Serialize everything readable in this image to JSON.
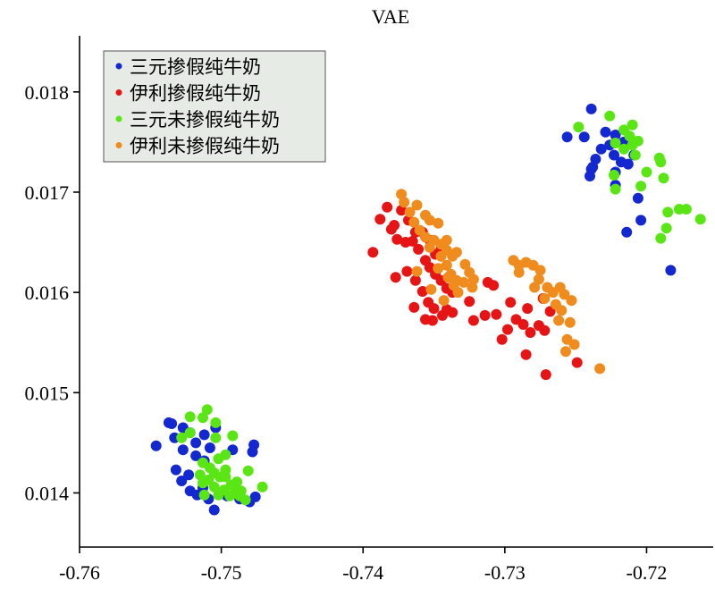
{
  "chart_data": {
    "type": "scatter",
    "title": "VAE",
    "xlabel": "",
    "ylabel": "",
    "xlim": [
      -0.76,
      -0.7153
    ],
    "ylim": [
      0.01346,
      0.01856
    ],
    "xticks": [
      -0.76,
      -0.75,
      -0.74,
      -0.73,
      -0.72
    ],
    "xtick_labels": [
      "-0.76",
      "-0.75",
      "-0.74",
      "-0.73",
      "-0.72"
    ],
    "yticks": [
      0.014,
      0.015,
      0.016,
      0.017,
      0.018
    ],
    "ytick_labels": [
      "0.014",
      "0.015",
      "0.016",
      "0.017",
      "0.018"
    ],
    "grid": false,
    "legend_position": "top-left",
    "series": [
      {
        "name": "三元掺假纯牛奶",
        "color": "#1428d2",
        "points": [
          [
            -0.7546,
            0.01447
          ],
          [
            -0.7537,
            0.0147
          ],
          [
            -0.7533,
            0.01455
          ],
          [
            -0.7527,
            0.01465
          ],
          [
            -0.7522,
            0.0146
          ],
          [
            -0.7518,
            0.0145
          ],
          [
            -0.7512,
            0.01458
          ],
          [
            -0.7508,
            0.01445
          ],
          [
            -0.7504,
            0.01465
          ],
          [
            -0.7527,
            0.01443
          ],
          [
            -0.7518,
            0.01437
          ],
          [
            -0.7512,
            0.01432
          ],
          [
            -0.7492,
            0.01443
          ],
          [
            -0.7477,
            0.01448
          ],
          [
            -0.7478,
            0.01441
          ],
          [
            -0.7532,
            0.01423
          ],
          [
            -0.7528,
            0.01412
          ],
          [
            -0.7523,
            0.01418
          ],
          [
            -0.7522,
            0.01402
          ],
          [
            -0.7517,
            0.01398
          ],
          [
            -0.7513,
            0.01405
          ],
          [
            -0.7509,
            0.01394
          ],
          [
            -0.7505,
            0.01383
          ],
          [
            -0.7496,
            0.01397
          ],
          [
            -0.7487,
            0.01394
          ],
          [
            -0.748,
            0.01391
          ],
          [
            -0.7476,
            0.01396
          ],
          [
            -0.7535,
            0.01469
          ],
          [
            -0.7239,
            0.01783
          ],
          [
            -0.7256,
            0.01755
          ],
          [
            -0.7244,
            0.01755
          ],
          [
            -0.7229,
            0.0176
          ],
          [
            -0.7222,
            0.01757
          ],
          [
            -0.7216,
            0.0175
          ],
          [
            -0.7232,
            0.01743
          ],
          [
            -0.7226,
            0.01747
          ],
          [
            -0.7223,
            0.01737
          ],
          [
            -0.7236,
            0.01733
          ],
          [
            -0.7238,
            0.01725
          ],
          [
            -0.724,
            0.01716
          ],
          [
            -0.7239,
            0.01723
          ],
          [
            -0.7222,
            0.0172
          ],
          [
            -0.7218,
            0.0173
          ],
          [
            -0.7213,
            0.01728
          ],
          [
            -0.7209,
            0.01737
          ],
          [
            -0.7222,
            0.01707
          ],
          [
            -0.7206,
            0.01694
          ],
          [
            -0.7204,
            0.01672
          ],
          [
            -0.7214,
            0.0166
          ],
          [
            -0.7183,
            0.01622
          ]
        ]
      },
      {
        "name": "伊利掺假纯牛奶",
        "color": "#e61414",
        "points": [
          [
            -0.7393,
            0.0164
          ],
          [
            -0.738,
            0.01663
          ],
          [
            -0.7388,
            0.01673
          ],
          [
            -0.7383,
            0.01685
          ],
          [
            -0.7378,
            0.01667
          ],
          [
            -0.7373,
            0.01682
          ],
          [
            -0.7368,
            0.01672
          ],
          [
            -0.7363,
            0.0166
          ],
          [
            -0.7358,
            0.0166
          ],
          [
            -0.7376,
            0.01653
          ],
          [
            -0.737,
            0.0165
          ],
          [
            -0.7365,
            0.01651
          ],
          [
            -0.7353,
            0.01652
          ],
          [
            -0.7349,
            0.01638
          ],
          [
            -0.7345,
            0.01644
          ],
          [
            -0.7361,
            0.01643
          ],
          [
            -0.7356,
            0.01632
          ],
          [
            -0.7353,
            0.01625
          ],
          [
            -0.7349,
            0.01618
          ],
          [
            -0.7345,
            0.01612
          ],
          [
            -0.7341,
            0.01604
          ],
          [
            -0.7337,
            0.016
          ],
          [
            -0.7377,
            0.01615
          ],
          [
            -0.7369,
            0.01621
          ],
          [
            -0.7363,
            0.01612
          ],
          [
            -0.7358,
            0.01601
          ],
          [
            -0.7354,
            0.0159
          ],
          [
            -0.735,
            0.01584
          ],
          [
            -0.7344,
            0.01577
          ],
          [
            -0.7341,
            0.01583
          ],
          [
            -0.7364,
            0.01585
          ],
          [
            -0.7356,
            0.01573
          ],
          [
            -0.7351,
            0.01572
          ],
          [
            -0.7337,
            0.0158
          ],
          [
            -0.7325,
            0.01591
          ],
          [
            -0.7322,
            0.01572
          ],
          [
            -0.7312,
            0.0161
          ],
          [
            -0.7308,
            0.01607
          ],
          [
            -0.7314,
            0.01577
          ],
          [
            -0.7306,
            0.01578
          ],
          [
            -0.7296,
            0.0159
          ],
          [
            -0.7284,
            0.01584
          ],
          [
            -0.7292,
            0.01573
          ],
          [
            -0.7298,
            0.01563
          ],
          [
            -0.7287,
            0.01568
          ],
          [
            -0.7302,
            0.01553
          ],
          [
            -0.7282,
            0.0156
          ],
          [
            -0.7276,
            0.01567
          ],
          [
            -0.7272,
            0.01562
          ],
          [
            -0.7268,
            0.01581
          ],
          [
            -0.7285,
            0.01538
          ],
          [
            -0.7271,
            0.01518
          ],
          [
            -0.7249,
            0.0153
          ],
          [
            -0.7273,
            0.01594
          ]
        ]
      },
      {
        "name": "三元未掺假纯牛奶",
        "color": "#5ae614",
        "points": [
          [
            -0.751,
            0.01483
          ],
          [
            -0.7513,
            0.01475
          ],
          [
            -0.7522,
            0.01476
          ],
          [
            -0.7504,
            0.0147
          ],
          [
            -0.7522,
            0.0146
          ],
          [
            -0.7528,
            0.01455
          ],
          [
            -0.7492,
            0.01457
          ],
          [
            -0.7504,
            0.01455
          ],
          [
            -0.7513,
            0.0143
          ],
          [
            -0.7502,
            0.01434
          ],
          [
            -0.7497,
            0.01438
          ],
          [
            -0.7508,
            0.01425
          ],
          [
            -0.7515,
            0.01418
          ],
          [
            -0.7497,
            0.01423
          ],
          [
            -0.7505,
            0.0142
          ],
          [
            -0.7509,
            0.01413
          ],
          [
            -0.7513,
            0.0141
          ],
          [
            -0.7501,
            0.01416
          ],
          [
            -0.7505,
            0.01406
          ],
          [
            -0.7493,
            0.01408
          ],
          [
            -0.7489,
            0.01411
          ],
          [
            -0.7481,
            0.01422
          ],
          [
            -0.7486,
            0.01402
          ],
          [
            -0.7498,
            0.01403
          ],
          [
            -0.7502,
            0.01398
          ],
          [
            -0.7494,
            0.01397
          ],
          [
            -0.7487,
            0.01397
          ],
          [
            -0.7483,
            0.01393
          ],
          [
            -0.7471,
            0.01406
          ],
          [
            -0.7512,
            0.01398
          ],
          [
            -0.7497,
            0.01416
          ],
          [
            -0.749,
            0.01404
          ],
          [
            -0.7248,
            0.01765
          ],
          [
            -0.7226,
            0.01776
          ],
          [
            -0.721,
            0.01767
          ],
          [
            -0.7216,
            0.01762
          ],
          [
            -0.7212,
            0.01756
          ],
          [
            -0.7222,
            0.01749
          ],
          [
            -0.7206,
            0.01751
          ],
          [
            -0.7216,
            0.01743
          ],
          [
            -0.721,
            0.01747
          ],
          [
            -0.7208,
            0.01737
          ],
          [
            -0.7191,
            0.01734
          ],
          [
            -0.719,
            0.0173
          ],
          [
            -0.72,
            0.0172
          ],
          [
            -0.7223,
            0.01717
          ],
          [
            -0.7222,
            0.01703
          ],
          [
            -0.7204,
            0.01706
          ],
          [
            -0.7188,
            0.01714
          ],
          [
            -0.7185,
            0.0168
          ],
          [
            -0.7177,
            0.01683
          ],
          [
            -0.7172,
            0.01683
          ],
          [
            -0.7162,
            0.01673
          ],
          [
            -0.7186,
            0.01664
          ],
          [
            -0.719,
            0.01654
          ]
        ]
      },
      {
        "name": "伊利未掺假纯牛奶",
        "color": "#f08c1e",
        "points": [
          [
            -0.7373,
            0.01698
          ],
          [
            -0.7371,
            0.0169
          ],
          [
            -0.7367,
            0.0168
          ],
          [
            -0.7362,
            0.01687
          ],
          [
            -0.7356,
            0.01677
          ],
          [
            -0.7353,
            0.01672
          ],
          [
            -0.7347,
            0.01669
          ],
          [
            -0.7364,
            0.0167
          ],
          [
            -0.736,
            0.01662
          ],
          [
            -0.7356,
            0.01655
          ],
          [
            -0.735,
            0.01652
          ],
          [
            -0.7345,
            0.01648
          ],
          [
            -0.7341,
            0.01652
          ],
          [
            -0.7353,
            0.01645
          ],
          [
            -0.7345,
            0.01636
          ],
          [
            -0.7341,
            0.01642
          ],
          [
            -0.7337,
            0.01636
          ],
          [
            -0.7334,
            0.0164
          ],
          [
            -0.7328,
            0.01628
          ],
          [
            -0.7325,
            0.0162
          ],
          [
            -0.7322,
            0.01613
          ],
          [
            -0.7341,
            0.01627
          ],
          [
            -0.7338,
            0.01618
          ],
          [
            -0.7334,
            0.01612
          ],
          [
            -0.7329,
            0.0161
          ],
          [
            -0.7323,
            0.01605
          ],
          [
            -0.7347,
            0.01624
          ],
          [
            -0.734,
            0.01615
          ],
          [
            -0.7336,
            0.01607
          ],
          [
            -0.7333,
            0.016
          ],
          [
            -0.7352,
            0.01603
          ],
          [
            -0.7343,
            0.01592
          ],
          [
            -0.7362,
            0.01621
          ],
          [
            -0.7294,
            0.01632
          ],
          [
            -0.729,
            0.01627
          ],
          [
            -0.7285,
            0.0163
          ],
          [
            -0.728,
            0.01627
          ],
          [
            -0.7275,
            0.01622
          ],
          [
            -0.729,
            0.0162
          ],
          [
            -0.7276,
            0.01613
          ],
          [
            -0.727,
            0.01605
          ],
          [
            -0.7266,
            0.016
          ],
          [
            -0.7261,
            0.01605
          ],
          [
            -0.7258,
            0.01598
          ],
          [
            -0.7253,
            0.01592
          ],
          [
            -0.7279,
            0.01605
          ],
          [
            -0.7272,
            0.01594
          ],
          [
            -0.7264,
            0.01588
          ],
          [
            -0.726,
            0.01582
          ],
          [
            -0.7254,
            0.0157
          ],
          [
            -0.7256,
            0.01553
          ],
          [
            -0.7251,
            0.01548
          ],
          [
            -0.7257,
            0.01541
          ],
          [
            -0.7262,
            0.01572
          ],
          [
            -0.7233,
            0.01524
          ]
        ]
      }
    ]
  }
}
